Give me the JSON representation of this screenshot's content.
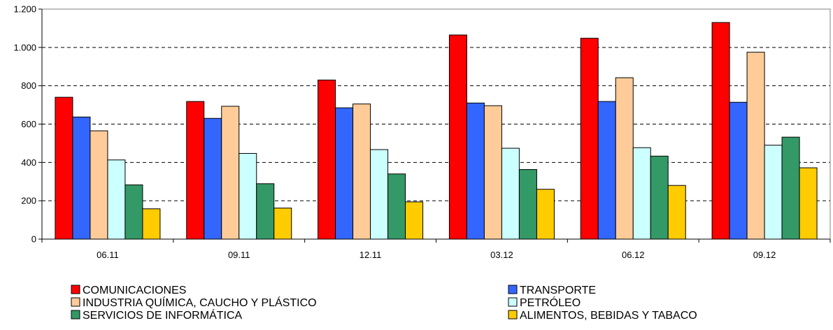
{
  "chart_data": {
    "type": "bar",
    "title": "",
    "xlabel": "",
    "ylabel": "",
    "categories": [
      "06.11",
      "09.11",
      "12.11",
      "03.12",
      "06.12",
      "09.12"
    ],
    "ylim": [
      0,
      1200
    ],
    "yticks": [
      0,
      200,
      400,
      600,
      800,
      1000,
      1200
    ],
    "ytick_labels": [
      "0",
      "200",
      "400",
      "600",
      "800",
      "1.000",
      "1.200"
    ],
    "grid": "horizontal-dashed",
    "legend_position": "bottom",
    "series": [
      {
        "name": "COMUNICACIONES",
        "color": "#ff0000",
        "values": [
          740,
          718,
          830,
          1065,
          1048,
          1130
        ]
      },
      {
        "name": "TRANSPORTE",
        "color": "#3366ff",
        "values": [
          637,
          630,
          685,
          710,
          718,
          714
        ]
      },
      {
        "name": "INDUSTRIA QUÍMICA, CAUCHO Y PLÁSTICO",
        "color": "#ffcc99",
        "values": [
          565,
          693,
          705,
          696,
          842,
          975
        ]
      },
      {
        "name": "PETRÓLEO",
        "color": "#ccffff",
        "values": [
          413,
          447,
          467,
          474,
          477,
          490
        ]
      },
      {
        "name": "SERVICIOS DE INFORMÁTICA",
        "color": "#339966",
        "values": [
          283,
          289,
          340,
          363,
          433,
          532
        ]
      },
      {
        "name": "ALIMENTOS, BEBIDAS Y TABACO",
        "color": "#ffcc00",
        "values": [
          158,
          162,
          194,
          260,
          280,
          372
        ]
      }
    ]
  }
}
